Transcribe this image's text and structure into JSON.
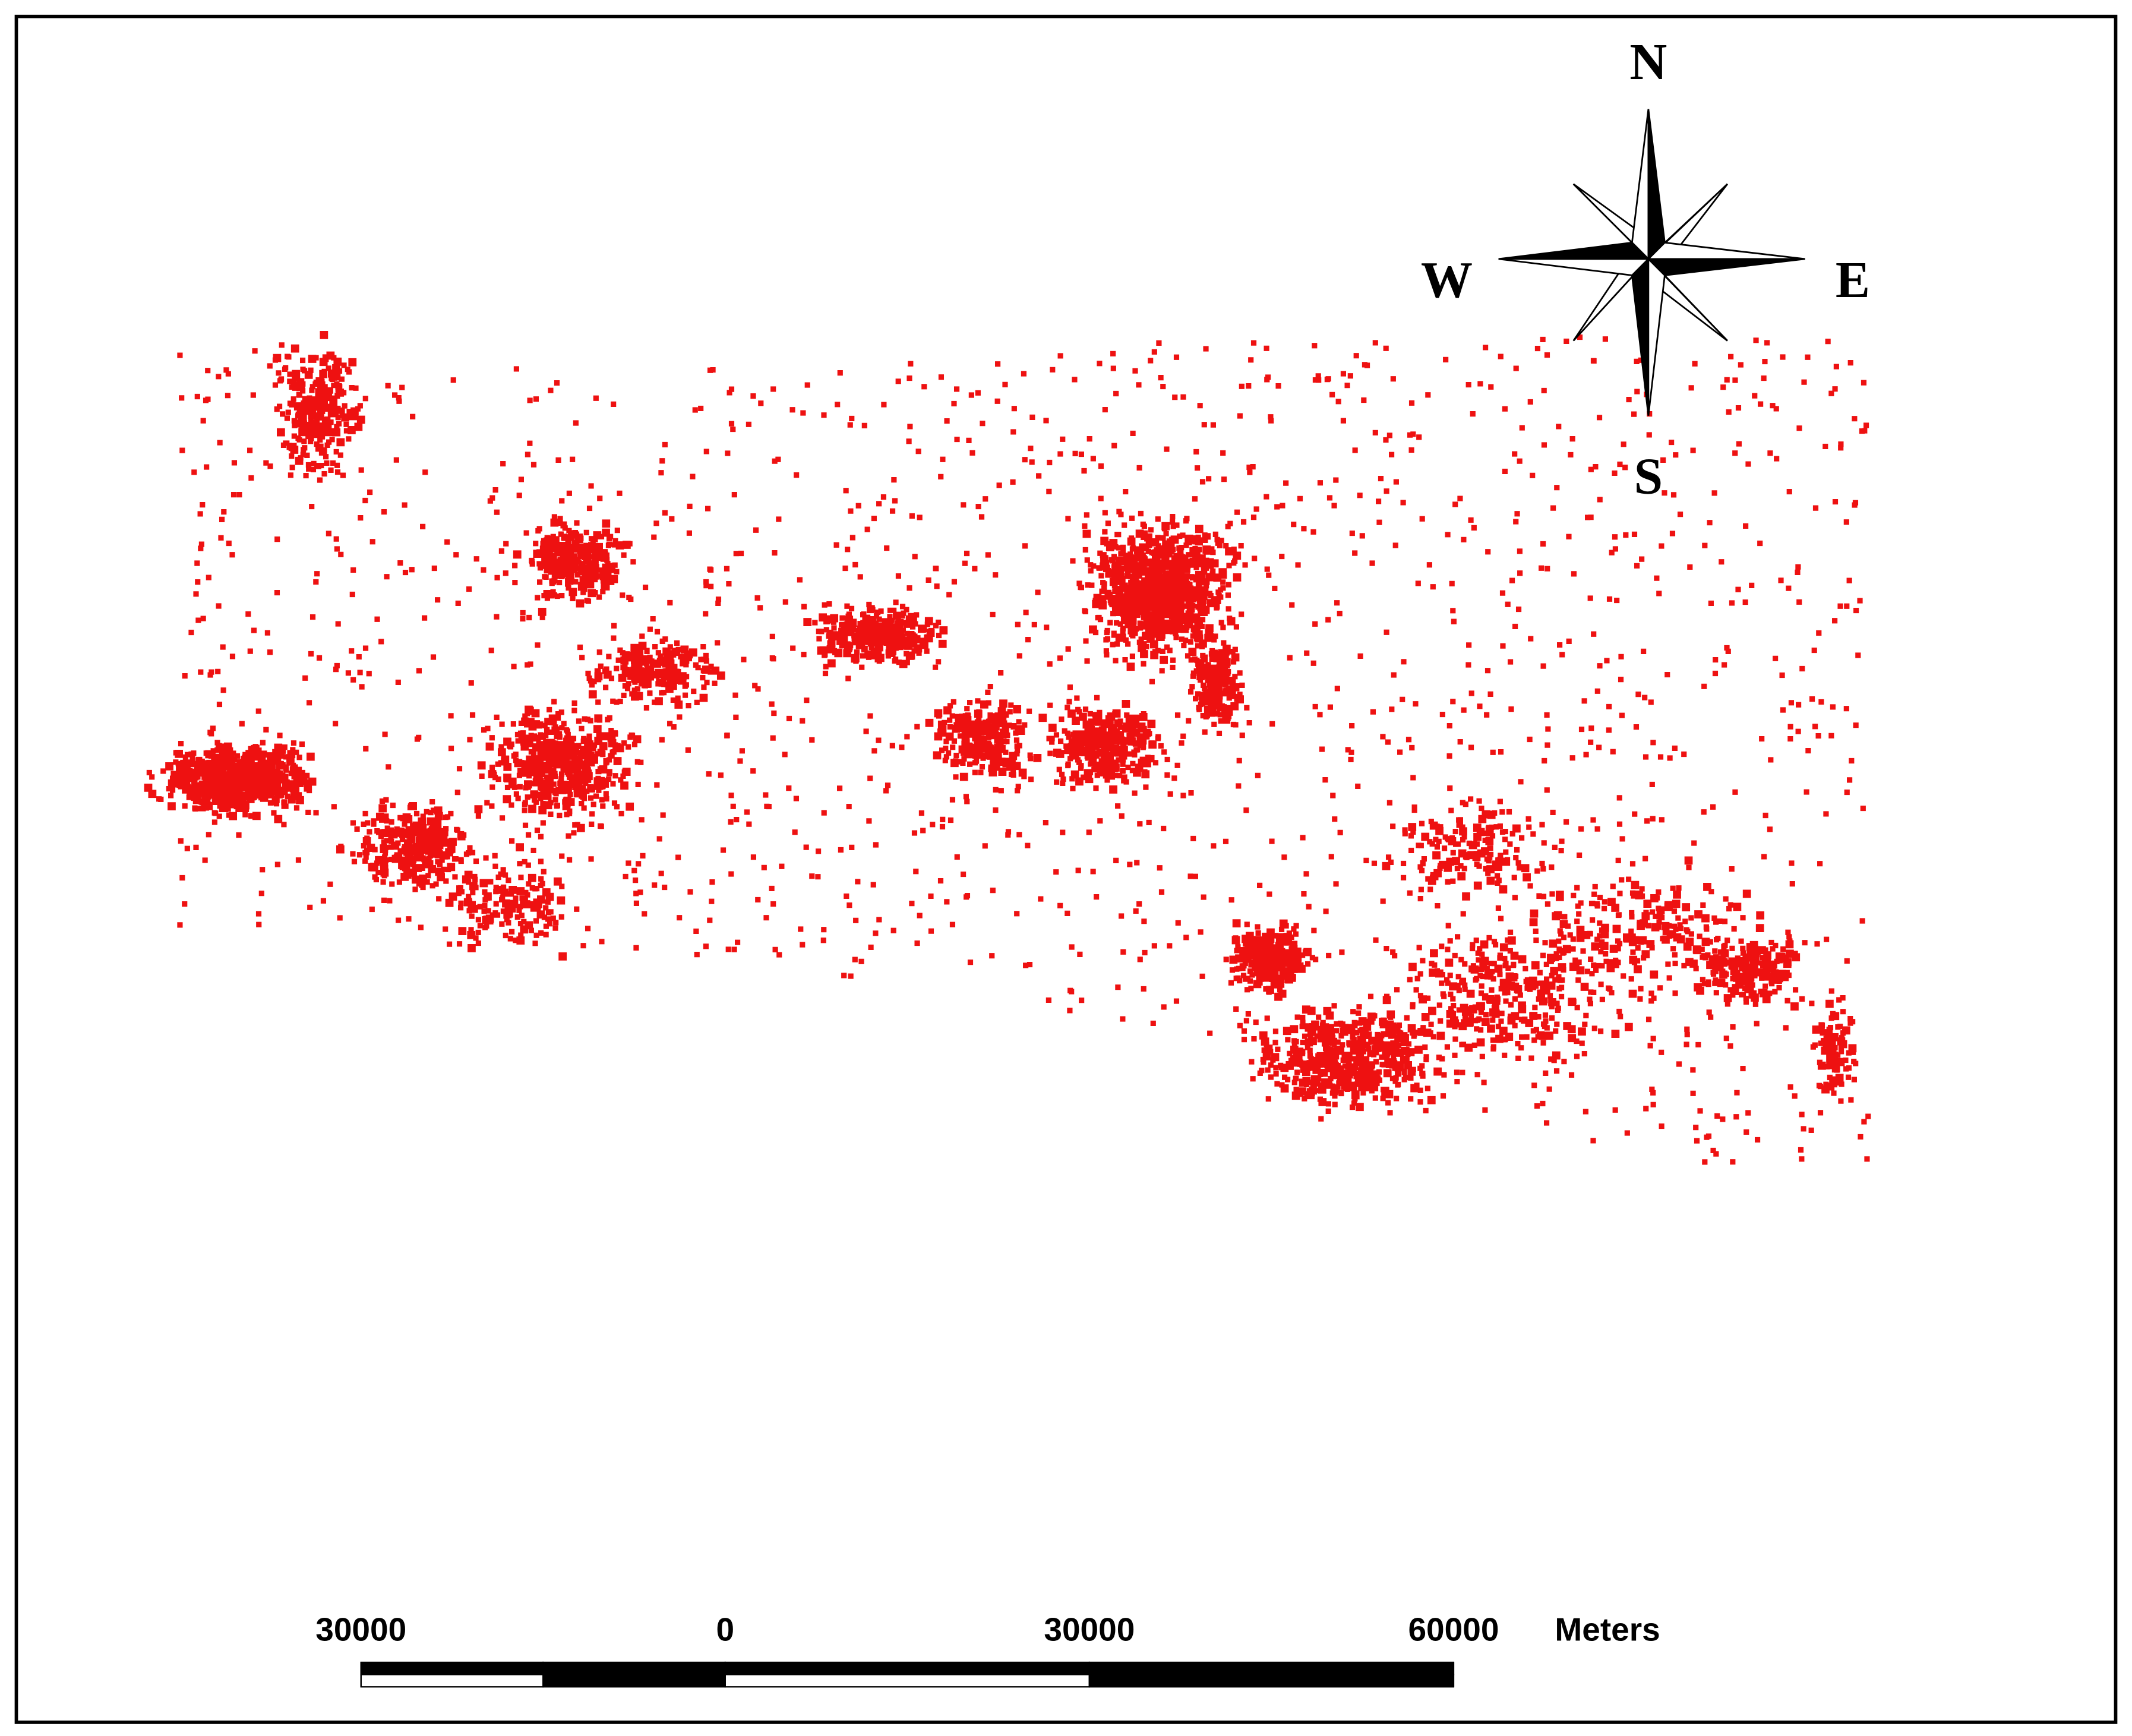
{
  "compass": {
    "north": "N",
    "south": "S",
    "east": "E",
    "west": "W"
  },
  "scale_bar": {
    "ticks": [
      {
        "value": -30000,
        "label": "30000"
      },
      0,
      30000,
      60000
    ],
    "unit": "Meters"
  }
}
